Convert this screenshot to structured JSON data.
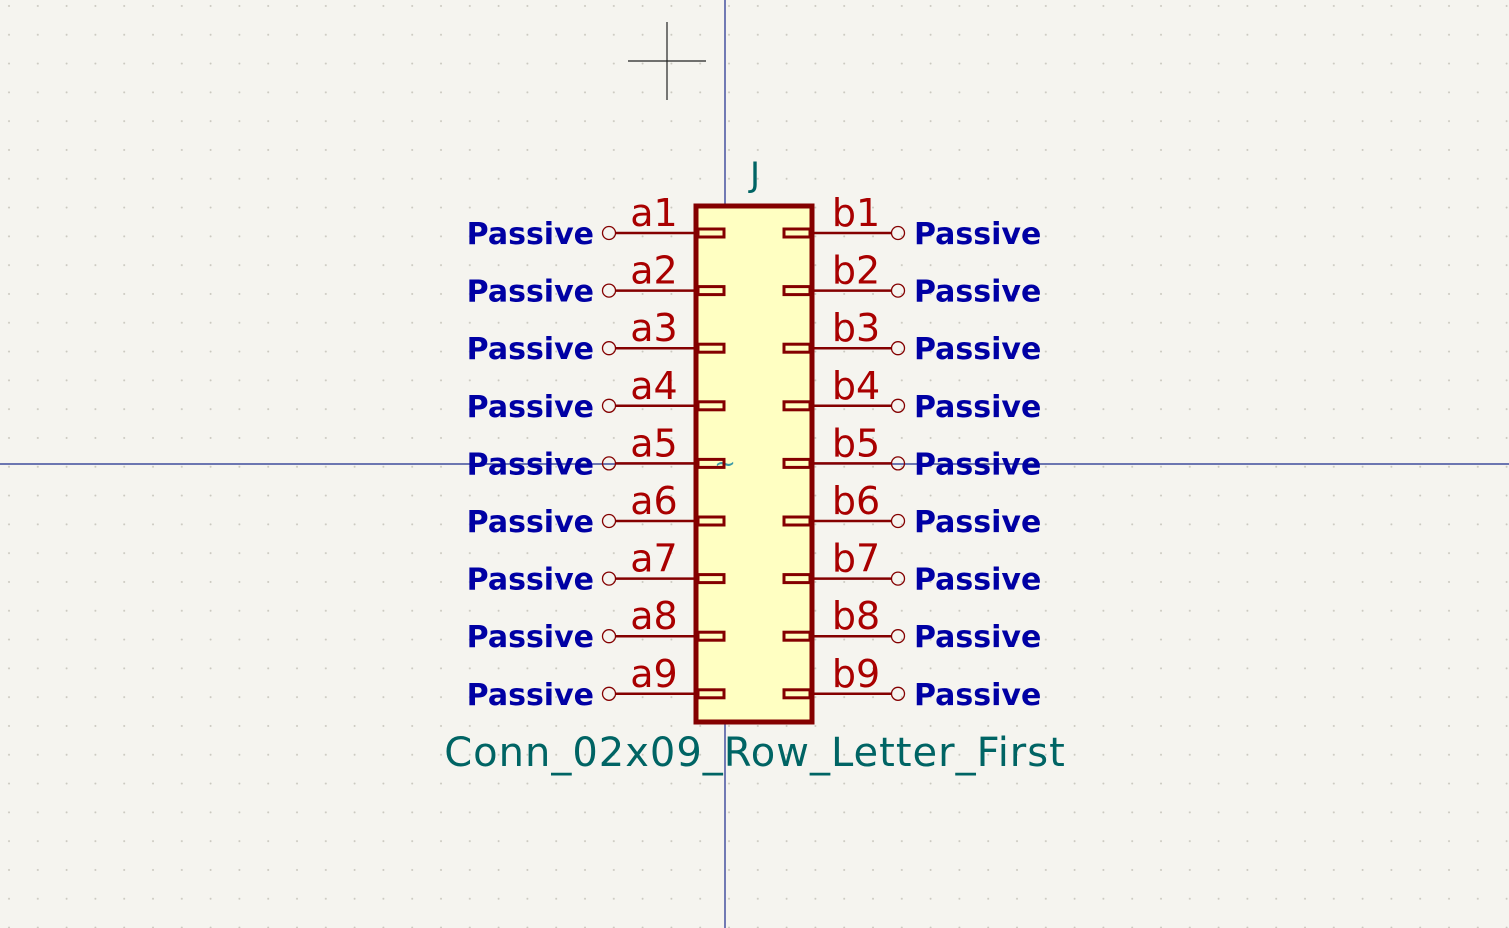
{
  "colors": {
    "background": "#f5f4ef",
    "grid": "#c9c7be",
    "crosshair": "#1a2a8c",
    "cursor": "#222222",
    "body_outline": "#840000",
    "body_fill": "#ffffc2",
    "pin": "#840000",
    "pin_number": "#a90000",
    "pin_type": "#0000a4",
    "field": "#006464",
    "anchor": "#3b9aa8"
  },
  "symbol": {
    "reference": "J",
    "value": "Conn_02x09_Row_Letter_First",
    "anchor_glyph": "~",
    "left_pins": [
      {
        "number": "a1",
        "type": "Passive"
      },
      {
        "number": "a2",
        "type": "Passive"
      },
      {
        "number": "a3",
        "type": "Passive"
      },
      {
        "number": "a4",
        "type": "Passive"
      },
      {
        "number": "a5",
        "type": "Passive"
      },
      {
        "number": "a6",
        "type": "Passive"
      },
      {
        "number": "a7",
        "type": "Passive"
      },
      {
        "number": "a8",
        "type": "Passive"
      },
      {
        "number": "a9",
        "type": "Passive"
      }
    ],
    "right_pins": [
      {
        "number": "b1",
        "type": "Passive"
      },
      {
        "number": "b2",
        "type": "Passive"
      },
      {
        "number": "b3",
        "type": "Passive"
      },
      {
        "number": "b4",
        "type": "Passive"
      },
      {
        "number": "b5",
        "type": "Passive"
      },
      {
        "number": "b6",
        "type": "Passive"
      },
      {
        "number": "b7",
        "type": "Passive"
      },
      {
        "number": "b8",
        "type": "Passive"
      },
      {
        "number": "b9",
        "type": "Passive"
      }
    ]
  }
}
